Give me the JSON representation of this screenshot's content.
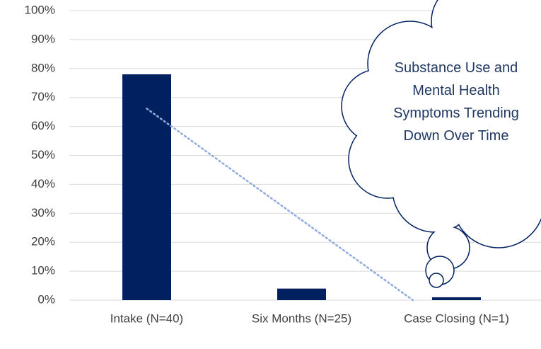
{
  "chart_data": {
    "type": "bar",
    "categories": [
      "Intake (N=40)",
      "Six Months (N=25)",
      "Case Closing (N=1)"
    ],
    "values": [
      78,
      4,
      1
    ],
    "color": "#002060",
    "trendline": {
      "type": "linear",
      "color": "#8faadc"
    },
    "ylim": [
      0,
      100
    ],
    "yticks": [
      {
        "value": 0,
        "label": "0%"
      },
      {
        "value": 10,
        "label": "10%"
      },
      {
        "value": 20,
        "label": "20%"
      },
      {
        "value": 30,
        "label": "30%"
      },
      {
        "value": 40,
        "label": "40%"
      },
      {
        "value": 50,
        "label": "50%"
      },
      {
        "value": 60,
        "label": "60%"
      },
      {
        "value": 70,
        "label": "70%"
      },
      {
        "value": 80,
        "label": "80%"
      },
      {
        "value": 90,
        "label": "90%"
      },
      {
        "value": 100,
        "label": "100%"
      }
    ],
    "grid": true,
    "annotation": "Substance Use and Mental Health Symptoms Trending Down Over Time"
  }
}
